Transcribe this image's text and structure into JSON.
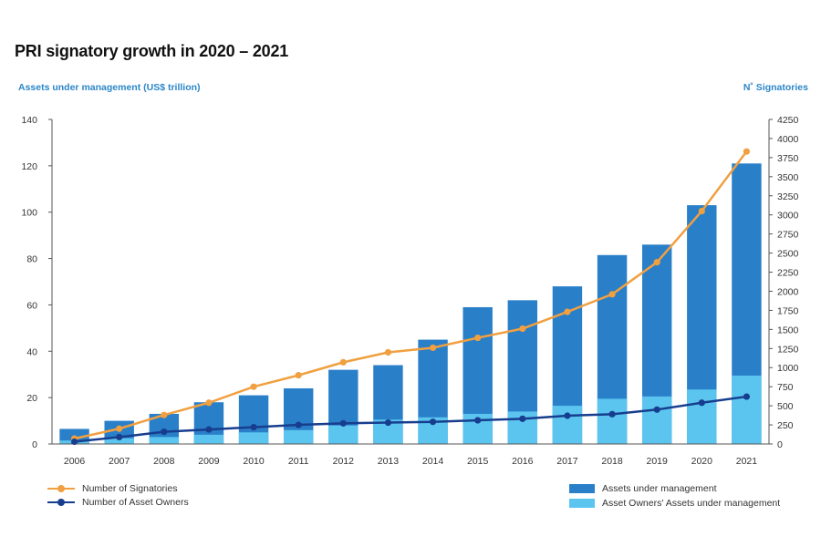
{
  "chart_data": {
    "type": "bar",
    "title": "PRI signatory growth in 2020 – 2021",
    "ylabel": "Assets under management (US$ trillion)",
    "y2label": "N˚ Signatories",
    "categories": [
      "2006",
      "2007",
      "2008",
      "2009",
      "2010",
      "2011",
      "2012",
      "2013",
      "2014",
      "2015",
      "2016",
      "2017",
      "2018",
      "2019",
      "2020",
      "2021"
    ],
    "ylim": [
      0,
      140
    ],
    "y_ticks": [
      0,
      20,
      40,
      60,
      80,
      100,
      120,
      140
    ],
    "y2lim": [
      0,
      4250
    ],
    "y2_ticks": [
      0,
      250,
      500,
      750,
      1000,
      1250,
      1500,
      1750,
      2000,
      2250,
      2500,
      2750,
      3000,
      3250,
      3500,
      3750,
      4000,
      4250
    ],
    "grid": false,
    "bar_series": [
      {
        "name": "Assets under management",
        "color": "#2a7fc9",
        "values": [
          6.5,
          10,
          13,
          18,
          21,
          24,
          32,
          34,
          45,
          59,
          62,
          68,
          81.5,
          86,
          103,
          121
        ]
      },
      {
        "name": "Asset Owners' Assets under management",
        "color": "#5bc5f0",
        "values": [
          1.5,
          2.5,
          3,
          4,
          5,
          6,
          8,
          10.5,
          11.5,
          13,
          14,
          16.5,
          19.5,
          20.5,
          23.5,
          29.5
        ]
      }
    ],
    "line_series": [
      {
        "name": "Number of Signatories",
        "color": "#f0a040",
        "axis": "right",
        "values": [
          70,
          200,
          380,
          540,
          750,
          900,
          1070,
          1200,
          1260,
          1390,
          1510,
          1730,
          1960,
          2380,
          3050,
          3830
        ]
      },
      {
        "name": "Number of Asset Owners",
        "color": "#173e8e",
        "axis": "right",
        "values": [
          30,
          90,
          160,
          190,
          220,
          250,
          270,
          280,
          290,
          310,
          330,
          370,
          390,
          450,
          540,
          620
        ]
      }
    ],
    "legend": [
      {
        "label": "Number of Signatories"
      },
      {
        "label": "Number of Asset Owners"
      },
      {
        "label": "Assets under management"
      },
      {
        "label": "Asset Owners' Assets under management"
      }
    ]
  }
}
